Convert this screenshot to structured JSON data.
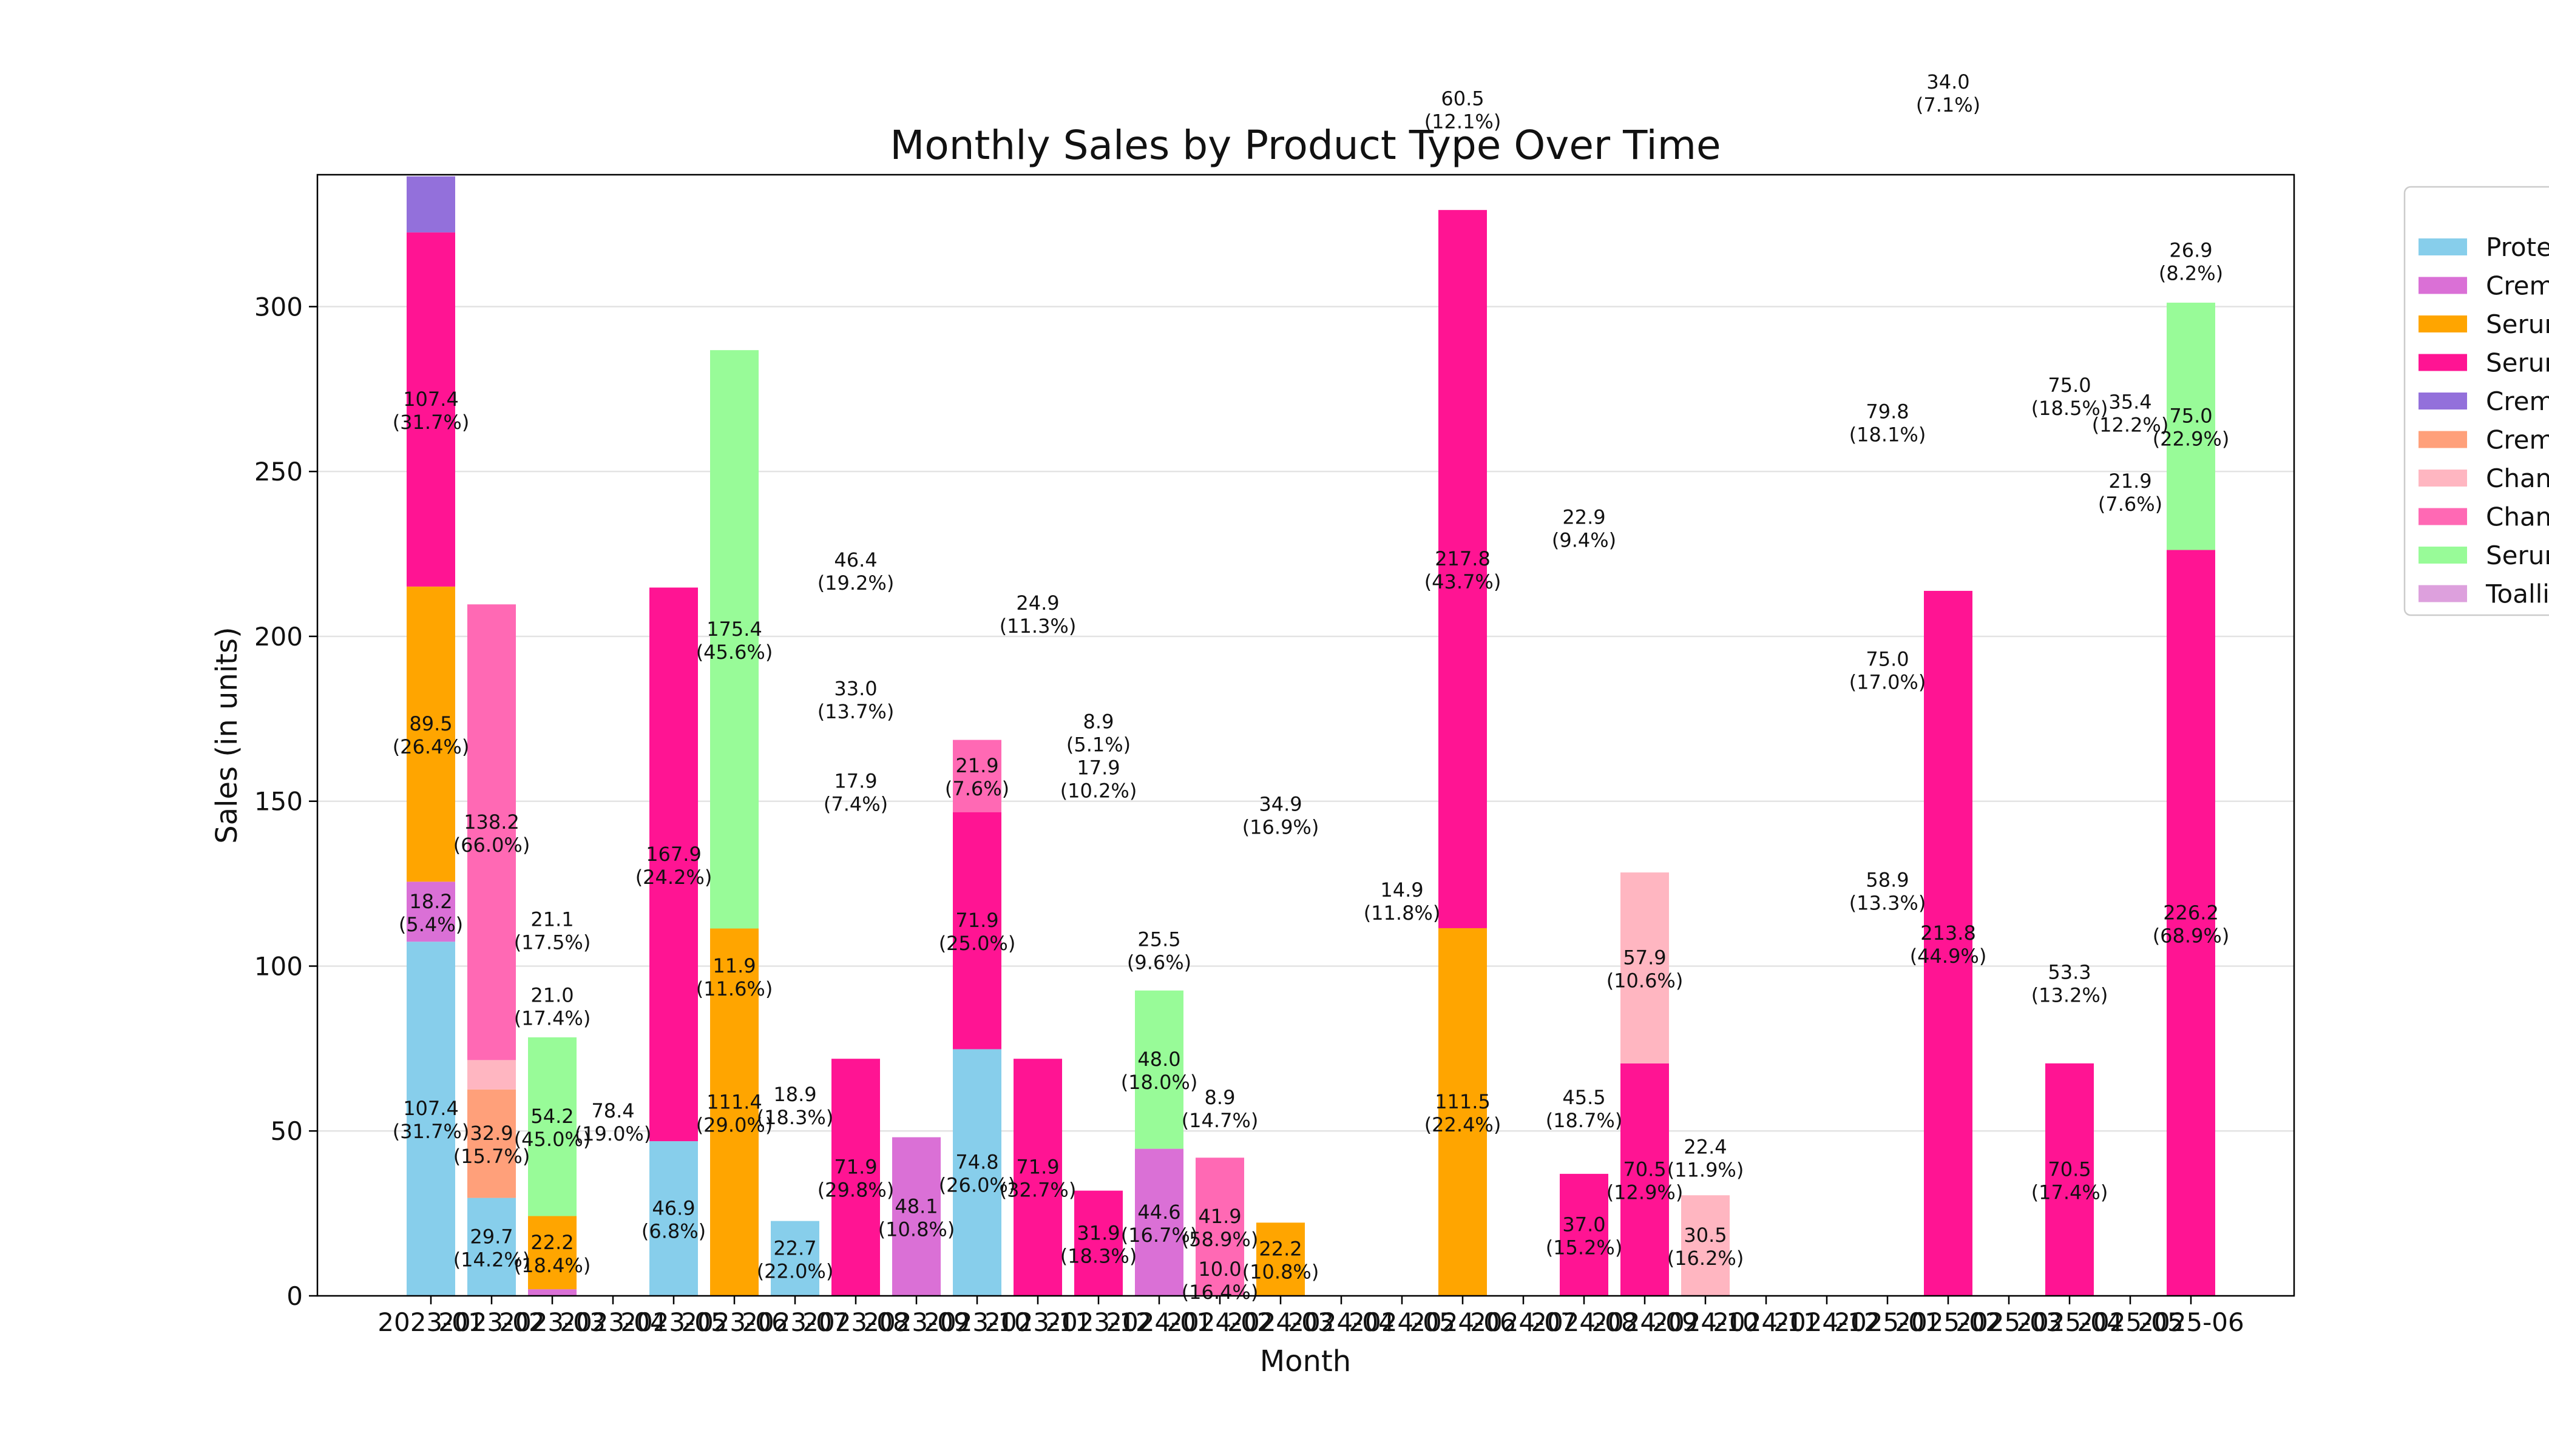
{
  "chart_data": {
    "type": "bar",
    "stacked": true,
    "title": "Monthly Sales by Product Type Over Time",
    "xlabel": "Month",
    "ylabel": "Sales (in units)",
    "ylim": [
      0,
      340
    ],
    "yticks": [
      0,
      50,
      100,
      150,
      200,
      250,
      300
    ],
    "grid": "horizontal",
    "legend_position": "right (clipped)",
    "categories": [
      "2023-01",
      "2023-02",
      "2023-03",
      "2023-04",
      "2023-05",
      "2023-06",
      "2023-07",
      "2023-08",
      "2023-09",
      "2023-10",
      "2023-11",
      "2023-12",
      "2024-01",
      "2024-02",
      "2024-03",
      "2024-04",
      "2024-05",
      "2024-06",
      "2024-07",
      "2024-08",
      "2024-09",
      "2024-10",
      "2024-11",
      "2024-12",
      "2025-01",
      "2025-02",
      "2025-03",
      "2025-04",
      "2025-05",
      "2025-06"
    ],
    "tick_labels_rendered": [
      "2023-01",
      "2023-02",
      "2023-03",
      "2023-04",
      "2023-05",
      "2023-06",
      "2023-07",
      "2023-08",
      "2023-09",
      "2023-10",
      "2023-11",
      "2023-12",
      "2024-01",
      "2024-02",
      "2024-03",
      "2024-04",
      "2024-05",
      "2024-06",
      "2024-07",
      "2024-08",
      "2024-09",
      "2024-10",
      "2024-11",
      "2024-12",
      "2025-01",
      "2025-02",
      "2025-03",
      "2025-04",
      "2025-05",
      "2025-06"
    ],
    "series": [
      {
        "name": "Prote",
        "color": "#87CEEB",
        "segments": [
          {
            "i": 0,
            "v": 107.4,
            "pct": "31.7%",
            "t": "light"
          },
          {
            "i": 1,
            "v": 29.7,
            "pct": "14.2%",
            "t": "dark"
          },
          {
            "i": 4,
            "v": 46.9,
            "pct": "6.8%",
            "t": "dark"
          },
          {
            "i": 6,
            "v": 22.7,
            "pct": "22.0%",
            "t": "light"
          },
          {
            "i": 9,
            "v": 74.8,
            "pct": "26.0%",
            "t": "light"
          }
        ]
      },
      {
        "name": "Crem",
        "color": "#DA70D6",
        "segments": [
          {
            "i": 0,
            "v": 18.2,
            "pct": "5.4%",
            "t": "dark"
          },
          {
            "i": 2,
            "v": 2,
            "pct": "",
            "t": "none"
          },
          {
            "i": 8,
            "v": 48.1,
            "pct": "10.8%",
            "t": "dark"
          },
          {
            "i": 12,
            "v": 44.6,
            "pct": "16.7%",
            "t": "dark"
          }
        ]
      },
      {
        "name": "Serur",
        "color": "#FFA500",
        "segments": [
          {
            "i": 0,
            "v": 89.5,
            "pct": "26.4%",
            "t": "light"
          },
          {
            "i": 2,
            "v": 22.2,
            "pct": "18.4%",
            "t": "dark"
          },
          {
            "i": 5,
            "v": 111.4,
            "pct": "29.0%",
            "t": "light"
          },
          {
            "i": 14,
            "v": 22.2,
            "pct": "10.8%",
            "t": "dark"
          },
          {
            "i": 17,
            "v": 111.5,
            "pct": "22.4%",
            "t": "light"
          }
        ]
      },
      {
        "name": "Serur",
        "color": "#FF1493",
        "segments": [
          {
            "i": 0,
            "v": 107.4,
            "pct": "31.7%",
            "t": "light"
          },
          {
            "i": 4,
            "v": 167.9,
            "pct": "24.2%",
            "t": "light"
          },
          {
            "i": 7,
            "v": 71.9,
            "pct": "29.8%",
            "t": "light"
          },
          {
            "i": 9,
            "v": 71.9,
            "pct": "25.0%",
            "t": "light"
          },
          {
            "i": 10,
            "v": 71.9,
            "pct": "32.7%",
            "t": "light"
          },
          {
            "i": 11,
            "v": 31.9,
            "pct": "18.3%",
            "t": "dark"
          },
          {
            "i": 17,
            "v": 217.8,
            "pct": "43.7%",
            "t": "light"
          },
          {
            "i": 19,
            "v": 37.0,
            "pct": "15.2%",
            "t": "dark"
          },
          {
            "i": 20,
            "v": 70.5,
            "pct": "12.9%",
            "t": "dark"
          },
          {
            "i": 25,
            "v": 213.8,
            "pct": "44.9%",
            "t": "light"
          },
          {
            "i": 27,
            "v": 70.5,
            "pct": "17.4%",
            "t": "dark"
          },
          {
            "i": 29,
            "v": 226.2,
            "pct": "68.9%",
            "t": "light"
          }
        ]
      },
      {
        "name": "Crem",
        "color": "#9370DB",
        "segments": [
          {
            "i": 0,
            "v": 17,
            "pct": "",
            "t": "none"
          }
        ]
      },
      {
        "name": "Crem",
        "color": "#FFA07A",
        "segments": [
          {
            "i": 1,
            "v": 32.9,
            "pct": "15.7%",
            "t": "dark"
          }
        ]
      },
      {
        "name": "Chan",
        "color": "#FFB6C1",
        "segments": [
          {
            "i": 1,
            "v": 8.9,
            "pct": "",
            "t": "none"
          },
          {
            "i": 20,
            "v": 57.9,
            "pct": "10.6%",
            "t": "dark"
          },
          {
            "i": 21,
            "v": 30.5,
            "pct": "16.2%",
            "t": "dark"
          }
        ]
      },
      {
        "name": "Chan",
        "color": "#FF69B4",
        "segments": [
          {
            "i": 1,
            "v": 138.2,
            "pct": "66.0%",
            "t": "light"
          },
          {
            "i": 9,
            "v": 21.9,
            "pct": "7.6%",
            "t": "dark"
          },
          {
            "i": 13,
            "v": 41.9,
            "pct": "58.9%",
            "t": "light"
          }
        ]
      },
      {
        "name": "Serur",
        "color": "#98FB98",
        "segments": [
          {
            "i": 2,
            "v": 54.2,
            "pct": "45.0%",
            "t": "light"
          },
          {
            "i": 5,
            "v": 175.4,
            "pct": "45.6%",
            "t": "light"
          },
          {
            "i": 12,
            "v": 48.0,
            "pct": "18.0%",
            "t": "dark"
          },
          {
            "i": 29,
            "v": 75.0,
            "pct": "22.9%",
            "t": "light"
          }
        ]
      },
      {
        "name": "Toalli",
        "color": "#DDA0DD",
        "segments": []
      }
    ],
    "extra_labels": [
      {
        "i": 2,
        "v": 21.1,
        "pct": "17.5%",
        "y": 111
      },
      {
        "i": 2,
        "v": 21.0,
        "pct": "17.4%",
        "y": 88
      },
      {
        "i": 3,
        "v": 78.4,
        "pct": "19.0%",
        "y": 53
      },
      {
        "i": 5,
        "v": 11.9,
        "pct": "11.6%",
        "y": 97
      },
      {
        "i": 6,
        "v": 18.9,
        "pct": "18.3%",
        "y": 58
      },
      {
        "i": 7,
        "v": 46.4,
        "pct": "19.2%",
        "y": 220
      },
      {
        "i": 7,
        "v": 33.0,
        "pct": "13.7%",
        "y": 181
      },
      {
        "i": 7,
        "v": 17.9,
        "pct": "7.4%",
        "y": 153
      },
      {
        "i": 10,
        "v": 24.9,
        "pct": "11.3%",
        "y": 207
      },
      {
        "i": 11,
        "v": 8.9,
        "pct": "5.1%",
        "y": 171
      },
      {
        "i": 11,
        "v": 17.9,
        "pct": "10.2%",
        "y": 157
      },
      {
        "i": 12,
        "v": 25.5,
        "pct": "9.6%",
        "y": 105
      },
      {
        "i": 13,
        "v": 8.9,
        "pct": "14.7%",
        "y": 57
      },
      {
        "i": 13,
        "v": 10.0,
        "pct": "16.4%",
        "y": 5
      },
      {
        "i": 14,
        "v": 34.9,
        "pct": "16.9%",
        "y": 146
      },
      {
        "i": 16,
        "v": 14.9,
        "pct": "11.8%",
        "y": 120
      },
      {
        "i": 17,
        "v": 60.5,
        "pct": "12.1%",
        "y": 360
      },
      {
        "i": 19,
        "v": 22.9,
        "pct": "9.4%",
        "y": 233
      },
      {
        "i": 19,
        "v": 45.5,
        "pct": "18.7%",
        "y": 57
      },
      {
        "i": 21,
        "v": 22.4,
        "pct": "11.9%",
        "y": 42
      },
      {
        "i": 24,
        "v": 79.8,
        "pct": "18.1%",
        "y": 265
      },
      {
        "i": 24,
        "v": 75.0,
        "pct": "17.0%",
        "y": 190
      },
      {
        "i": 24,
        "v": 58.9,
        "pct": "13.3%",
        "y": 123
      },
      {
        "i": 25,
        "v": 34.0,
        "pct": "7.1%",
        "y": 365
      },
      {
        "i": 27,
        "v": 75.0,
        "pct": "18.5%",
        "y": 273
      },
      {
        "i": 27,
        "v": 53.3,
        "pct": "13.2%",
        "y": 95
      },
      {
        "i": 28,
        "v": 35.4,
        "pct": "12.2%",
        "y": 268
      },
      {
        "i": 28,
        "v": 21.9,
        "pct": "7.6%",
        "y": 244
      },
      {
        "i": 29,
        "v": 26.9,
        "pct": "8.2%",
        "y": 314
      }
    ]
  }
}
